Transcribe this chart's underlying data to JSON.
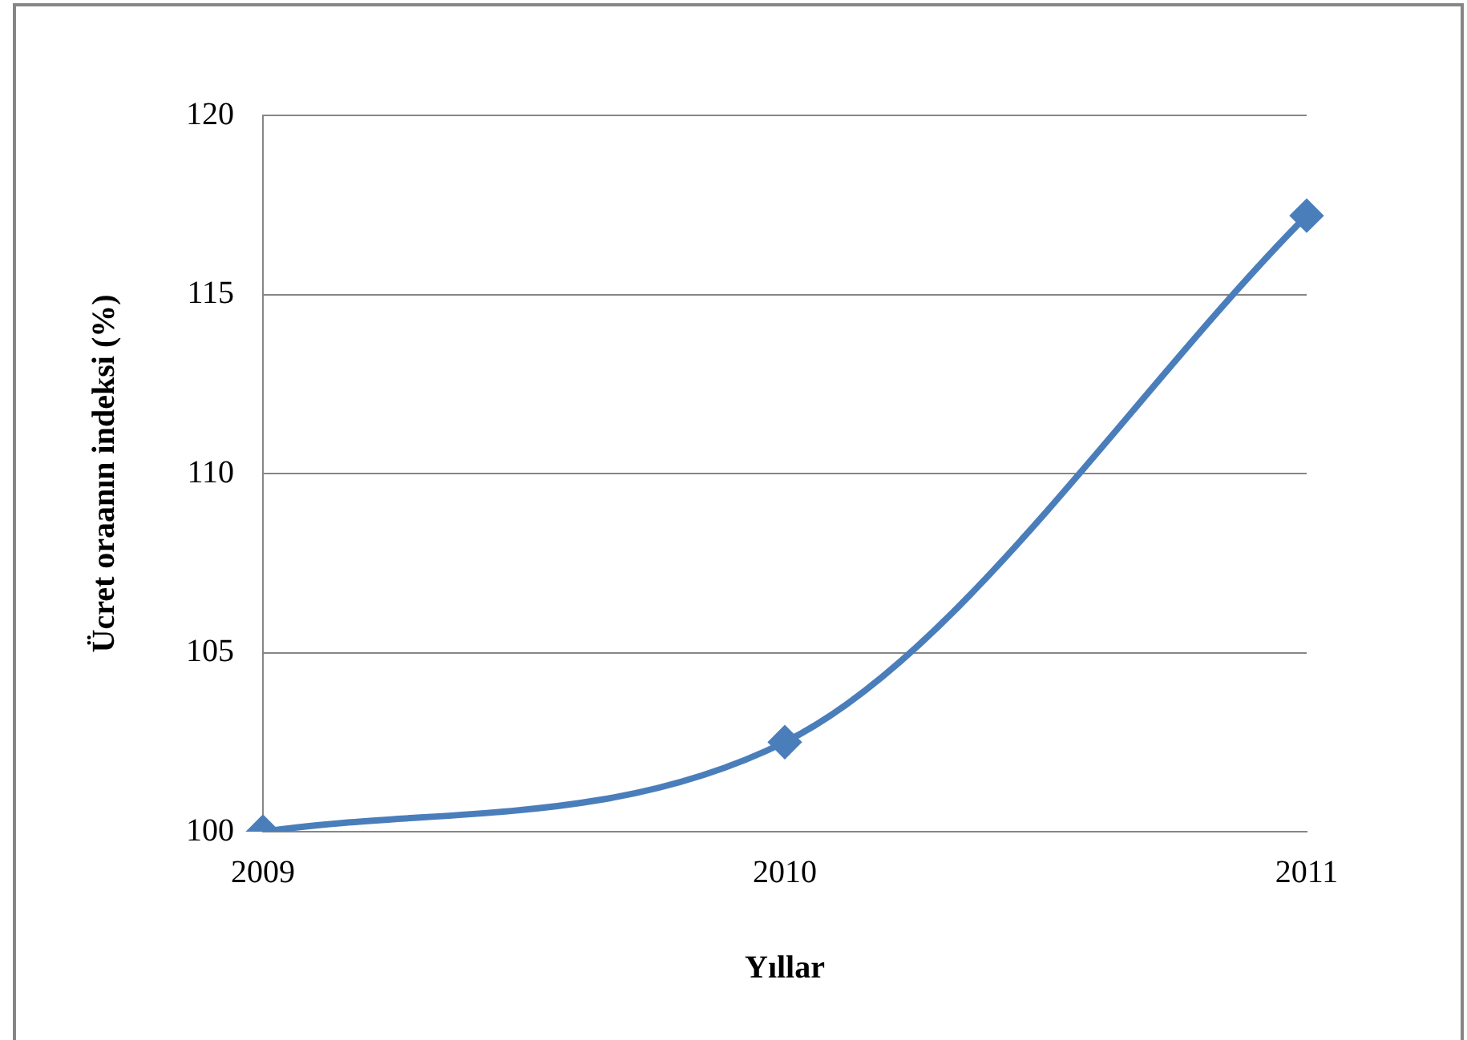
{
  "chart_data": {
    "type": "line",
    "xlabel": "Yıllar",
    "ylabel": "Ücret oraanın indeksi (%)",
    "categories": [
      "2009",
      "2010",
      "2011"
    ],
    "series": [
      {
        "color": "#4a7ebb",
        "values": [
          100,
          102.5,
          117.2
        ]
      }
    ],
    "ylim": [
      100,
      120
    ],
    "yticks": [
      100,
      105,
      110,
      115,
      120
    ],
    "grid": "y",
    "legend": false,
    "marker": "diamond",
    "line_style": "solid"
  }
}
